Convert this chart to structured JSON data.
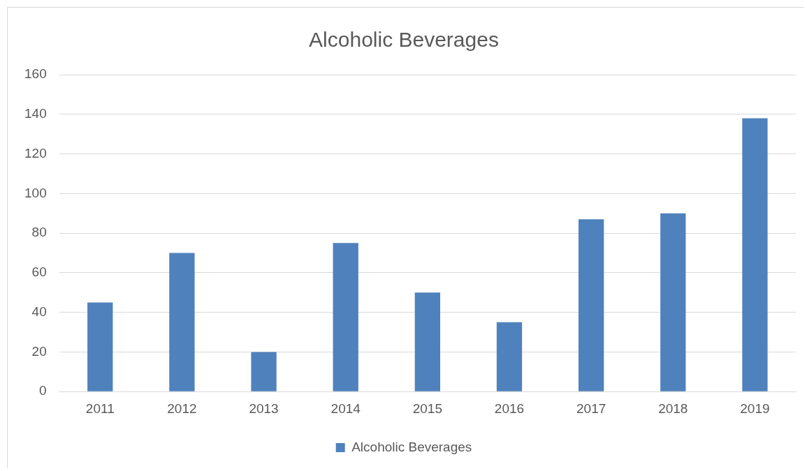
{
  "chart_data": {
    "type": "bar",
    "title": "Alcoholic Beverages",
    "categories": [
      "2011",
      "2012",
      "2013",
      "2014",
      "2015",
      "2016",
      "2017",
      "2018",
      "2019"
    ],
    "series": [
      {
        "name": "Alcoholic Beverages",
        "color": "#4f81bd",
        "values": [
          45,
          70,
          20,
          75,
          50,
          35,
          87,
          90,
          138
        ]
      }
    ],
    "ylim": [
      0,
      160
    ],
    "yticks": [
      0,
      20,
      40,
      60,
      80,
      100,
      120,
      140,
      160
    ],
    "grid": "y",
    "legend": "bottom"
  }
}
